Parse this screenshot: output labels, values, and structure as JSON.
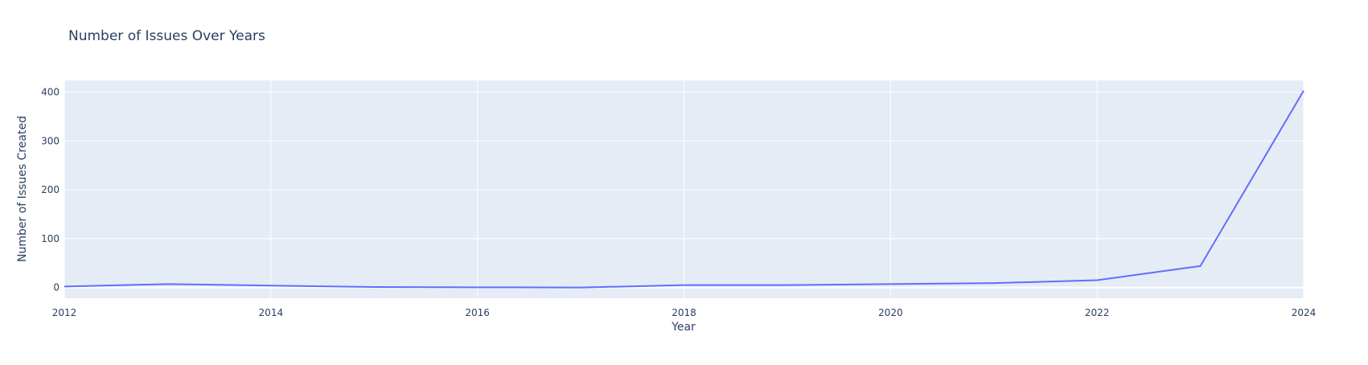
{
  "chart_data": {
    "type": "line",
    "title": "Number of Issues Over Years",
    "xlabel": "Year",
    "ylabel": "Number of Issues Created",
    "x": [
      2012,
      2013,
      2014,
      2015,
      2016,
      2017,
      2018,
      2019,
      2020,
      2021,
      2022,
      2023,
      2024
    ],
    "series": [
      {
        "values": [
          2,
          7,
          4,
          1,
          0.5,
          0,
          5,
          5,
          7,
          9,
          15,
          44,
          403
        ]
      }
    ],
    "xlim": [
      2012,
      2024
    ],
    "ylim": [
      -22,
      424
    ],
    "xticks": [
      "2012",
      "2014",
      "2016",
      "2018",
      "2020",
      "2022",
      "2024"
    ],
    "yticks": [
      "0",
      "100",
      "200",
      "300",
      "400"
    ],
    "grid": true,
    "legend": "none",
    "colors": {
      "line": "#636efa",
      "plot_bg": "#e5ecf6",
      "grid": "#ffffff",
      "text": "#2a3f5f"
    }
  }
}
